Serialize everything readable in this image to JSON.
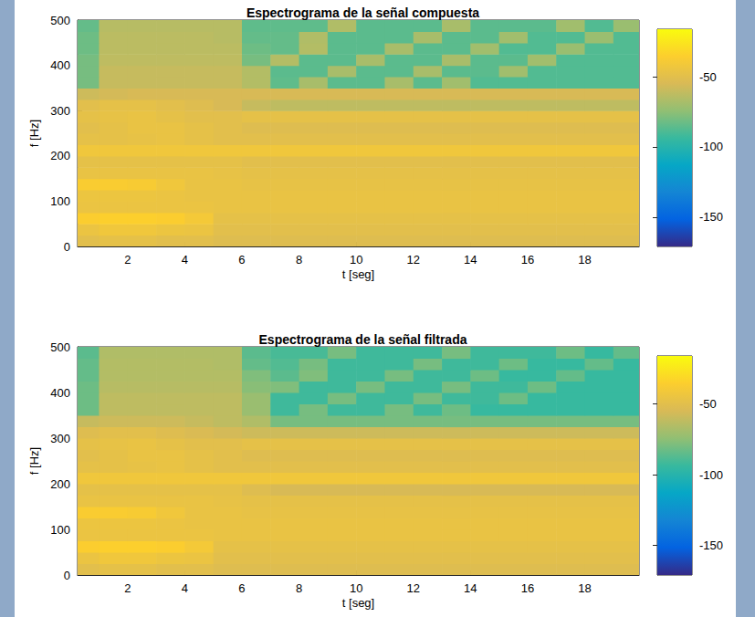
{
  "chart_data": [
    {
      "type": "heatmap",
      "title": "Espectrograma de la señal compuesta",
      "x_label": "t [seg]",
      "y_label": "f [Hz]",
      "xlim": [
        0.25,
        19.9
      ],
      "xticks": [
        2,
        4,
        6,
        8,
        10,
        12,
        14,
        16,
        18
      ],
      "ylim": [
        0,
        500
      ],
      "yticks": [
        0,
        100,
        200,
        300,
        400,
        500
      ],
      "t_edges": [
        0,
        1,
        2,
        3,
        4,
        5,
        6,
        7,
        8,
        9,
        10,
        11,
        12,
        13,
        14,
        15,
        16,
        17,
        18,
        19,
        20
      ],
      "f_edges": [
        0,
        25,
        50,
        75,
        100,
        125,
        150,
        175,
        200,
        225,
        250,
        275,
        300,
        325,
        350,
        375,
        400,
        425,
        450,
        475,
        500
      ],
      "z": [
        [
          -50,
          -48,
          -48,
          -50,
          -50,
          -52,
          -52,
          -52,
          -52,
          -52,
          -52,
          -52,
          -52,
          -52,
          -52,
          -52,
          -52,
          -52,
          -52,
          -52
        ],
        [
          -45,
          -42,
          -42,
          -44,
          -45,
          -50,
          -50,
          -50,
          -50,
          -50,
          -50,
          -50,
          -50,
          -50,
          -50,
          -50,
          -50,
          -50,
          -50,
          -50
        ],
        [
          -36,
          -35,
          -35,
          -36,
          -40,
          -48,
          -48,
          -48,
          -48,
          -48,
          -48,
          -48,
          -48,
          -48,
          -48,
          -48,
          -48,
          -48,
          -48,
          -48
        ],
        [
          -45,
          -45,
          -45,
          -45,
          -45,
          -46,
          -46,
          -46,
          -46,
          -46,
          -46,
          -46,
          -46,
          -46,
          -46,
          -46,
          -46,
          -46,
          -46,
          -46
        ],
        [
          -44,
          -44,
          -44,
          -45,
          -46,
          -46,
          -46,
          -46,
          -46,
          -46,
          -46,
          -46,
          -46,
          -46,
          -46,
          -46,
          -46,
          -46,
          -46,
          -46
        ],
        [
          -37,
          -37,
          -38,
          -42,
          -46,
          -46,
          -47,
          -47,
          -47,
          -47,
          -47,
          -47,
          -47,
          -47,
          -47,
          -47,
          -47,
          -47,
          -47,
          -47
        ],
        [
          -46,
          -46,
          -46,
          -46,
          -46,
          -47,
          -48,
          -48,
          -48,
          -48,
          -48,
          -48,
          -48,
          -48,
          -48,
          -48,
          -48,
          -48,
          -48,
          -48
        ],
        [
          -48,
          -48,
          -48,
          -48,
          -48,
          -48,
          -50,
          -50,
          -50,
          -50,
          -50,
          -50,
          -50,
          -50,
          -50,
          -50,
          -50,
          -50,
          -50,
          -50
        ],
        [
          -42,
          -42,
          -42,
          -42,
          -42,
          -42,
          -42,
          -42,
          -42,
          -42,
          -42,
          -42,
          -42,
          -42,
          -42,
          -42,
          -42,
          -42,
          -42,
          -42
        ],
        [
          -48,
          -48,
          -47,
          -46,
          -48,
          -50,
          -50,
          -50,
          -50,
          -50,
          -50,
          -50,
          -50,
          -50,
          -50,
          -50,
          -50,
          -50,
          -50,
          -50
        ],
        [
          -50,
          -48,
          -46,
          -46,
          -48,
          -50,
          -52,
          -52,
          -52,
          -52,
          -52,
          -52,
          -52,
          -52,
          -52,
          -52,
          -52,
          -52,
          -52,
          -52
        ],
        [
          -48,
          -47,
          -46,
          -48,
          -50,
          -50,
          -48,
          -48,
          -48,
          -48,
          -48,
          -48,
          -48,
          -48,
          -48,
          -48,
          -48,
          -48,
          -48,
          -48
        ],
        [
          -50,
          -48,
          -48,
          -50,
          -52,
          -55,
          -60,
          -62,
          -62,
          -62,
          -62,
          -62,
          -62,
          -62,
          -62,
          -62,
          -62,
          -62,
          -62,
          -62
        ],
        [
          -58,
          -56,
          -55,
          -55,
          -55,
          -55,
          -55,
          -55,
          -55,
          -55,
          -55,
          -55,
          -55,
          -55,
          -55,
          -55,
          -55,
          -55,
          -55,
          -55
        ],
        [
          -80,
          -60,
          -60,
          -60,
          -60,
          -60,
          -65,
          -85,
          -68,
          -86,
          -86,
          -68,
          -86,
          -70,
          -88,
          -88,
          -88,
          -88,
          -88,
          -88
        ],
        [
          -80,
          -60,
          -60,
          -60,
          -60,
          -60,
          -65,
          -86,
          -86,
          -68,
          -86,
          -86,
          -68,
          -86,
          -86,
          -70,
          -88,
          -88,
          -88,
          -88
        ],
        [
          -80,
          -62,
          -62,
          -62,
          -62,
          -62,
          -80,
          -65,
          -86,
          -86,
          -68,
          -86,
          -86,
          -68,
          -86,
          -86,
          -70,
          -88,
          -88,
          -88
        ],
        [
          -82,
          -63,
          -63,
          -63,
          -63,
          -63,
          -82,
          -84,
          -65,
          -86,
          -86,
          -68,
          -86,
          -86,
          -70,
          -88,
          -88,
          -72,
          -88,
          -88
        ],
        [
          -82,
          -63,
          -63,
          -63,
          -63,
          -64,
          -84,
          -84,
          -66,
          -86,
          -86,
          -86,
          -68,
          -86,
          -86,
          -70,
          -88,
          -88,
          -72,
          -88
        ],
        [
          -84,
          -64,
          -64,
          -64,
          -64,
          -64,
          -85,
          -85,
          -85,
          -66,
          -86,
          -86,
          -86,
          -68,
          -86,
          -86,
          -86,
          -70,
          -88,
          -72
        ]
      ],
      "colorbar_range": [
        -171,
        -16
      ],
      "colorbar_ticks": [
        -150,
        -100,
        -50
      ]
    },
    {
      "type": "heatmap",
      "title": "Espectrograma de la señal filtrada",
      "x_label": "t [seg]",
      "y_label": "f [Hz]",
      "xlim": [
        0.25,
        19.9
      ],
      "xticks": [
        2,
        4,
        6,
        8,
        10,
        12,
        14,
        16,
        18
      ],
      "ylim": [
        0,
        500
      ],
      "yticks": [
        0,
        100,
        200,
        300,
        400,
        500
      ],
      "t_edges": [
        0,
        1,
        2,
        3,
        4,
        5,
        6,
        7,
        8,
        9,
        10,
        11,
        12,
        13,
        14,
        15,
        16,
        17,
        18,
        19,
        20
      ],
      "f_edges": [
        0,
        25,
        50,
        75,
        100,
        125,
        150,
        175,
        200,
        225,
        250,
        275,
        300,
        325,
        350,
        375,
        400,
        425,
        450,
        475,
        500
      ],
      "z": [
        [
          -50,
          -48,
          -48,
          -50,
          -50,
          -52,
          -52,
          -52,
          -52,
          -52,
          -52,
          -52,
          -52,
          -52,
          -52,
          -52,
          -52,
          -52,
          -52,
          -52
        ],
        [
          -45,
          -42,
          -42,
          -44,
          -45,
          -50,
          -50,
          -50,
          -50,
          -50,
          -50,
          -50,
          -50,
          -50,
          -50,
          -50,
          -50,
          -50,
          -50,
          -50
        ],
        [
          -36,
          -35,
          -35,
          -36,
          -40,
          -48,
          -48,
          -48,
          -48,
          -48,
          -48,
          -48,
          -48,
          -48,
          -48,
          -48,
          -48,
          -48,
          -48,
          -48
        ],
        [
          -45,
          -45,
          -45,
          -45,
          -45,
          -46,
          -46,
          -46,
          -46,
          -46,
          -46,
          -46,
          -46,
          -46,
          -46,
          -46,
          -46,
          -46,
          -46,
          -46
        ],
        [
          -44,
          -44,
          -44,
          -45,
          -46,
          -46,
          -46,
          -46,
          -46,
          -46,
          -46,
          -46,
          -46,
          -46,
          -46,
          -46,
          -46,
          -46,
          -46,
          -46
        ],
        [
          -37,
          -37,
          -38,
          -42,
          -46,
          -46,
          -47,
          -47,
          -47,
          -47,
          -47,
          -47,
          -47,
          -47,
          -47,
          -47,
          -47,
          -47,
          -47,
          -47
        ],
        [
          -46,
          -46,
          -46,
          -46,
          -46,
          -47,
          -48,
          -48,
          -48,
          -48,
          -48,
          -48,
          -48,
          -48,
          -48,
          -48,
          -48,
          -48,
          -48,
          -48
        ],
        [
          -48,
          -48,
          -48,
          -48,
          -48,
          -48,
          -52,
          -55,
          -55,
          -55,
          -55,
          -55,
          -55,
          -55,
          -55,
          -55,
          -55,
          -55,
          -55,
          -55
        ],
        [
          -42,
          -42,
          -42,
          -42,
          -42,
          -42,
          -42,
          -42,
          -42,
          -42,
          -42,
          -42,
          -42,
          -42,
          -42,
          -42,
          -42,
          -42,
          -42,
          -42
        ],
        [
          -48,
          -48,
          -47,
          -46,
          -48,
          -50,
          -50,
          -50,
          -50,
          -50,
          -50,
          -50,
          -50,
          -50,
          -50,
          -50,
          -50,
          -50,
          -50,
          -50
        ],
        [
          -50,
          -48,
          -46,
          -46,
          -48,
          -50,
          -52,
          -52,
          -52,
          -52,
          -52,
          -52,
          -52,
          -52,
          -52,
          -52,
          -52,
          -52,
          -52,
          -52
        ],
        [
          -48,
          -47,
          -46,
          -48,
          -50,
          -50,
          -48,
          -48,
          -48,
          -48,
          -48,
          -48,
          -48,
          -48,
          -48,
          -48,
          -48,
          -48,
          -48,
          -48
        ],
        [
          -52,
          -50,
          -50,
          -52,
          -54,
          -56,
          -58,
          -58,
          -58,
          -58,
          -58,
          -58,
          -58,
          -58,
          -58,
          -58,
          -58,
          -58,
          -58,
          -58
        ],
        [
          -60,
          -58,
          -58,
          -58,
          -60,
          -62,
          -66,
          -80,
          -80,
          -80,
          -80,
          -80,
          -80,
          -80,
          -80,
          -80,
          -80,
          -80,
          -80,
          -80
        ],
        [
          -82,
          -62,
          -62,
          -62,
          -62,
          -62,
          -72,
          -92,
          -80,
          -92,
          -92,
          -80,
          -92,
          -82,
          -94,
          -94,
          -94,
          -94,
          -94,
          -94
        ],
        [
          -82,
          -62,
          -62,
          -62,
          -62,
          -62,
          -72,
          -92,
          -92,
          -80,
          -92,
          -92,
          -80,
          -92,
          -92,
          -82,
          -94,
          -94,
          -94,
          -94
        ],
        [
          -82,
          -64,
          -64,
          -64,
          -64,
          -64,
          -76,
          -78,
          -92,
          -92,
          -80,
          -92,
          -92,
          -80,
          -92,
          -92,
          -82,
          -94,
          -94,
          -94
        ],
        [
          -84,
          -65,
          -65,
          -65,
          -65,
          -65,
          -78,
          -86,
          -78,
          -92,
          -92,
          -80,
          -92,
          -92,
          -82,
          -94,
          -94,
          -84,
          -94,
          -94
        ],
        [
          -84,
          -65,
          -65,
          -65,
          -65,
          -66,
          -84,
          -88,
          -80,
          -92,
          -92,
          -92,
          -80,
          -92,
          -92,
          -82,
          -94,
          -94,
          -84,
          -94
        ],
        [
          -86,
          -66,
          -66,
          -66,
          -66,
          -66,
          -86,
          -90,
          -90,
          -80,
          -92,
          -92,
          -92,
          -80,
          -92,
          -92,
          -92,
          -82,
          -94,
          -84
        ]
      ],
      "colorbar_range": [
        -171,
        -16
      ],
      "colorbar_ticks": [
        -150,
        -100,
        -50
      ]
    }
  ]
}
